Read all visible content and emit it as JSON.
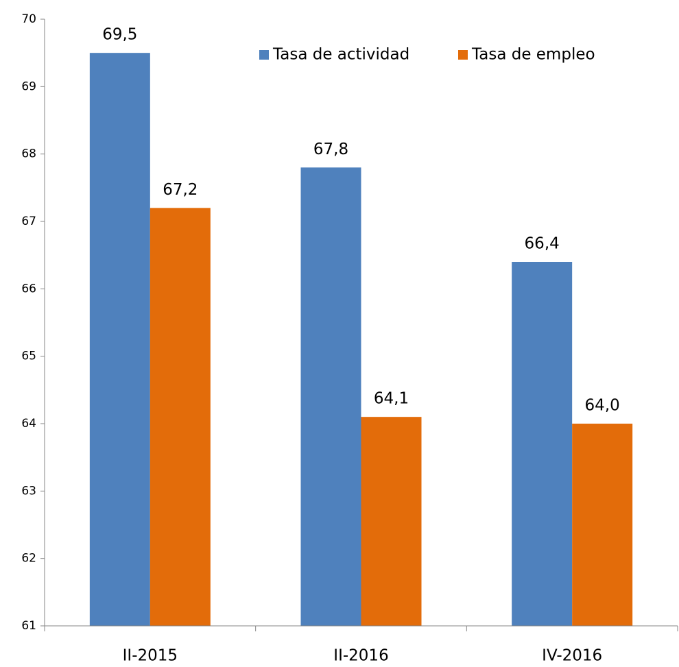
{
  "chart_data": {
    "type": "bar",
    "categories": [
      "II-2015",
      "II-2016",
      "IV-2016"
    ],
    "series": [
      {
        "name": "Tasa de actividad",
        "color": "#4f81bd",
        "values": [
          69.5,
          67.8,
          66.4
        ],
        "value_labels": [
          "69,5",
          "67,8",
          "66,4"
        ]
      },
      {
        "name": "Tasa de empleo",
        "color": "#e36c0a",
        "values": [
          67.2,
          64.1,
          64.0
        ],
        "value_labels": [
          "67,2",
          "64,1",
          "64,0"
        ]
      }
    ],
    "ylim": [
      61,
      70
    ],
    "yticks": [
      61,
      62,
      63,
      64,
      65,
      66,
      67,
      68,
      69,
      70
    ],
    "legend": "top"
  }
}
